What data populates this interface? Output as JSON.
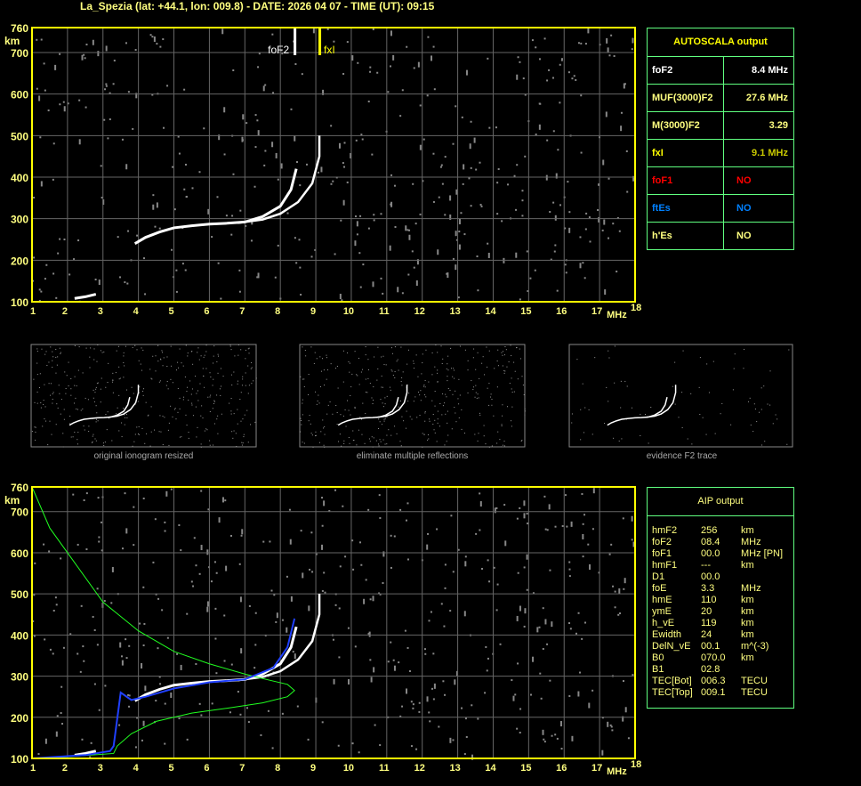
{
  "header": {
    "title": "La_Spezia (lat: +44.1, lon: 009.8) - DATE: 2026 04 07 - TIME (UT): 09:15"
  },
  "autoscala": {
    "title": "AUTOSCALA output",
    "rows": [
      {
        "key": "foF2",
        "value": "8.4 MHz",
        "kc": "#ffffff",
        "vc": "#ffffff"
      },
      {
        "key": "MUF(3000)F2",
        "value": "27.6 MHz",
        "kc": "#ffff80",
        "vc": "#ffff80"
      },
      {
        "key": "M(3000)F2",
        "value": "3.29",
        "kc": "#ffff80",
        "vc": "#ffff80"
      },
      {
        "key": "fxI",
        "value": "9.1 MHz",
        "kc": "#ffff00",
        "vc": "#c8c800"
      },
      {
        "key": "foF1",
        "value": "NO",
        "kc": "#ff0000",
        "vc": "#ff0000"
      },
      {
        "key": "ftEs",
        "value": "NO",
        "kc": "#0080ff",
        "vc": "#0080ff"
      },
      {
        "key": "h'Es",
        "value": "NO",
        "kc": "#ffff80",
        "vc": "#ffff80"
      }
    ]
  },
  "aip": {
    "title": "AIP output",
    "rows": [
      [
        "hmF2",
        "256",
        "km"
      ],
      [
        "foF2",
        "08.4",
        "MHz"
      ],
      [
        "foF1",
        "00.0",
        "MHz   [PN]"
      ],
      [
        "hmF1",
        "---",
        "km"
      ],
      [
        "D1",
        "00.0",
        ""
      ],
      [
        "foE",
        "3.3",
        "MHz"
      ],
      [
        "hmE",
        "110",
        "km"
      ],
      [
        "ymE",
        "20",
        "km"
      ],
      [
        "h_vE",
        "119",
        "km"
      ],
      [
        "Ewidth",
        "24",
        "km"
      ],
      [
        "DelN_vE",
        "00.1",
        "m^(-3)"
      ],
      [
        "B0",
        "070.0",
        "km"
      ],
      [
        "B1",
        "02.8",
        ""
      ],
      [
        "TEC[Bot]",
        "006.3",
        "TECU"
      ],
      [
        "TEC[Top]",
        "009.1",
        "TECU"
      ]
    ]
  },
  "thumbnails": {
    "captions": [
      "original ionogram resized",
      "eliminate multiple reflections",
      "evidence F2 trace"
    ]
  },
  "chart_data": {
    "type": "scatter",
    "xlabel": "MHz",
    "ylabel": "km",
    "xlim": [
      1,
      18
    ],
    "ylim": [
      100,
      760
    ],
    "xticks": [
      1,
      2,
      3,
      4,
      5,
      6,
      7,
      8,
      9,
      10,
      11,
      12,
      13,
      14,
      15,
      16,
      17,
      18
    ],
    "yticks": [
      100,
      200,
      300,
      400,
      500,
      600,
      700,
      760
    ],
    "grid": true,
    "markers": [
      {
        "label": "foF2",
        "x": 8.4,
        "color": "#ffffff"
      },
      {
        "label": "fxI",
        "x": 9.1,
        "color": "#ffff00"
      }
    ],
    "o_trace": [
      [
        3.9,
        240
      ],
      [
        4.2,
        255
      ],
      [
        4.6,
        268
      ],
      [
        5,
        278
      ],
      [
        5.5,
        283
      ],
      [
        6,
        287
      ],
      [
        6.5,
        289
      ],
      [
        7,
        292
      ],
      [
        7.5,
        305
      ],
      [
        8,
        330
      ],
      [
        8.3,
        370
      ],
      [
        8.45,
        420
      ]
    ],
    "x_trace": [
      [
        6.8,
        290
      ],
      [
        7.5,
        298
      ],
      [
        8,
        312
      ],
      [
        8.5,
        340
      ],
      [
        8.9,
        385
      ],
      [
        9.1,
        450
      ],
      [
        9.1,
        500
      ]
    ],
    "e_trace": [
      [
        2.2,
        108
      ],
      [
        2.5,
        112
      ],
      [
        2.8,
        118
      ]
    ],
    "profile_green": [
      [
        1,
        760
      ],
      [
        1.5,
        660
      ],
      [
        2,
        600
      ],
      [
        3,
        480
      ],
      [
        4,
        410
      ],
      [
        5,
        360
      ],
      [
        6,
        330
      ],
      [
        7,
        305
      ],
      [
        7.7,
        290
      ],
      [
        8.2,
        280
      ],
      [
        8.4,
        265
      ],
      [
        8.2,
        250
      ],
      [
        7.5,
        235
      ],
      [
        6.5,
        222
      ],
      [
        5.5,
        210
      ],
      [
        4.5,
        190
      ],
      [
        3.8,
        160
      ],
      [
        3.4,
        130
      ],
      [
        3.3,
        112
      ],
      [
        2,
        104
      ],
      [
        1,
        100
      ]
    ],
    "fit_blue": [
      [
        1,
        100
      ],
      [
        2.5,
        108
      ],
      [
        3.2,
        118
      ],
      [
        3.3,
        130
      ],
      [
        3.5,
        260
      ],
      [
        3.8,
        242
      ],
      [
        4.2,
        250
      ],
      [
        5,
        270
      ],
      [
        6,
        285
      ],
      [
        7,
        292
      ],
      [
        7.8,
        320
      ],
      [
        8.2,
        370
      ],
      [
        8.4,
        440
      ]
    ]
  }
}
